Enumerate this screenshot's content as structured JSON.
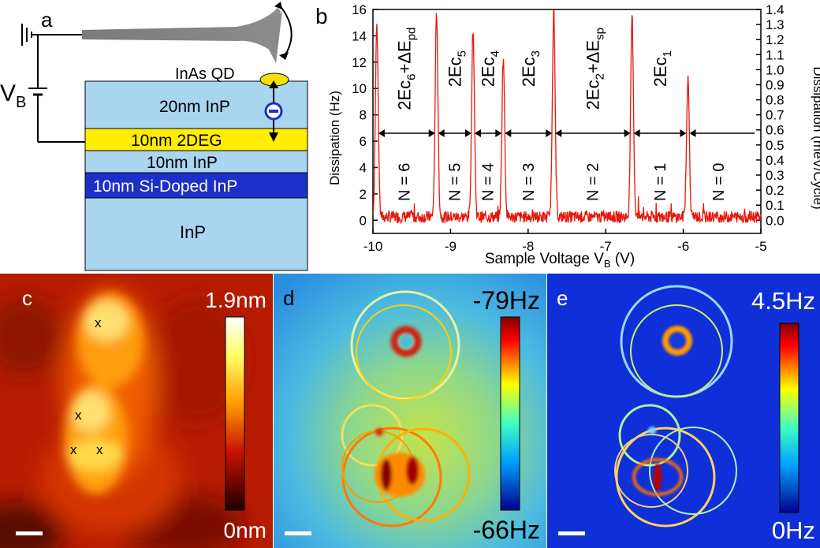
{
  "panel_a": {
    "label": "a",
    "vb_main": "V",
    "vb_sub": "B",
    "qd_label": "InAs QD",
    "layers": [
      {
        "name": "20nm InP",
        "color": "#a9d5ef",
        "text_color": "#000000"
      },
      {
        "name": "10nm 2DEG",
        "color": "#ffee00",
        "text_color": "#000000"
      },
      {
        "name": "10nm InP",
        "color": "#a9d5ef",
        "text_color": "#000000"
      },
      {
        "name": "10nm Si-Doped InP",
        "color": "#1c2fc8",
        "text_color": "#ffffff"
      },
      {
        "name": "InP",
        "color": "#a9d5ef",
        "text_color": "#000000"
      }
    ],
    "electron_symbol": "−"
  },
  "panel_b": {
    "label": "b",
    "chart_data": {
      "type": "line",
      "xlabel_main": "Sample Voltage V",
      "xlabel_sub": "B",
      "xlabel_unit": " (V)",
      "ylabel": "Dissipation (Hz)",
      "ylabel_right": "Dissipation (meV/Cycle)",
      "xlim": [
        -10,
        -5
      ],
      "ylim": [
        -1,
        16
      ],
      "xticks": [
        "-10",
        "-9",
        "-8",
        "-7",
        "-6",
        "-5"
      ],
      "yticks": [
        "0",
        "2",
        "4",
        "6",
        "8",
        "10",
        "12",
        "14",
        "16"
      ],
      "yticks_right": [
        "0.0",
        "0.1",
        "0.2",
        "0.3",
        "0.4",
        "0.5",
        "0.6",
        "0.7",
        "0.8",
        "0.9",
        "1.0",
        "1.1",
        "1.2",
        "1.3",
        "1.4"
      ],
      "peaks": [
        {
          "x": -9.95,
          "y": 14.6
        },
        {
          "x": -9.18,
          "y": 15.4
        },
        {
          "x": -8.71,
          "y": 14.3
        },
        {
          "x": -8.32,
          "y": 12.1
        },
        {
          "x": -7.67,
          "y": 15.6
        },
        {
          "x": -6.66,
          "y": 15.2
        },
        {
          "x": -5.94,
          "y": 10.5
        }
      ],
      "arrow_y": 6.6,
      "charging_energies": [
        {
          "main": "2Ec",
          "sub": "6",
          "extra": "+ΔE",
          "extra_sub": "pd",
          "x": -9.6
        },
        {
          "main": "2Ec",
          "sub": "5",
          "extra": "",
          "extra_sub": "",
          "x": -8.95
        },
        {
          "main": "2Ec",
          "sub": "4",
          "extra": "",
          "extra_sub": "",
          "x": -8.52
        },
        {
          "main": "2Ec",
          "sub": "3",
          "extra": "",
          "extra_sub": "",
          "x": -8.0
        },
        {
          "main": "2Ec",
          "sub": "2",
          "extra": "+ΔE",
          "extra_sub": "sp",
          "x": -7.17
        },
        {
          "main": "2Ec",
          "sub": "1",
          "extra": "",
          "extra_sub": "",
          "x": -6.3
        }
      ],
      "occupations": [
        {
          "text": "N = 6",
          "x": -9.6
        },
        {
          "text": "N = 5",
          "x": -8.95
        },
        {
          "text": "N = 4",
          "x": -8.52
        },
        {
          "text": "N = 3",
          "x": -8.0
        },
        {
          "text": "N = 2",
          "x": -7.17
        },
        {
          "text": "N = 1",
          "x": -6.3
        },
        {
          "text": "N = 0",
          "x": -5.55
        }
      ]
    }
  },
  "panel_c": {
    "label": "c",
    "cbar_max": "1.9nm",
    "cbar_min": "0nm",
    "marker": "x"
  },
  "panel_d": {
    "label": "d",
    "cbar_max": "-79Hz",
    "cbar_min": "-66Hz"
  },
  "panel_e": {
    "label": "e",
    "cbar_max": "4.5Hz",
    "cbar_min": "0Hz"
  }
}
